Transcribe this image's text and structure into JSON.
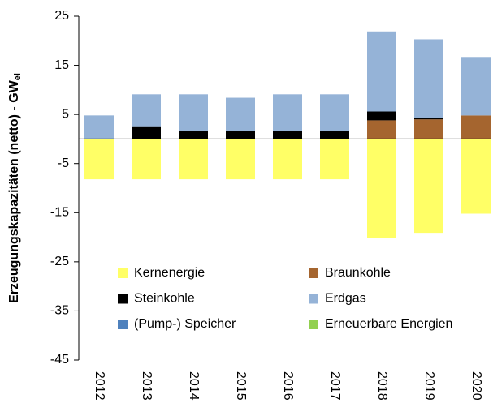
{
  "chart_data": {
    "type": "bar",
    "stacked": true,
    "ylabel": "Erzeugungskapazitäten (netto) - GW",
    "ylabel_sub": "el",
    "categories": [
      "2012",
      "2013",
      "2014",
      "2015",
      "2016",
      "2017",
      "2018",
      "2019",
      "2020"
    ],
    "series": [
      {
        "name": "Kernenergie",
        "color": "#ffff66",
        "values": [
          -8.2,
          -8.2,
          -8.2,
          -8.2,
          -8.2,
          -8.2,
          -20.1,
          -19.1,
          -15.2
        ]
      },
      {
        "name": "Braunkohle",
        "color": "#a5652f",
        "values": [
          0,
          0,
          0,
          0,
          0,
          0,
          3.8,
          4.0,
          4.8
        ]
      },
      {
        "name": "Steinkohle",
        "color": "#000000",
        "values": [
          0,
          2.6,
          1.6,
          1.6,
          1.6,
          1.6,
          1.8,
          0.2,
          0
        ]
      },
      {
        "name": "Erdgas",
        "color": "#95b3d7",
        "values": [
          4.8,
          6.5,
          7.5,
          6.8,
          7.5,
          7.5,
          16.3,
          16.1,
          11.9
        ]
      },
      {
        "name": "(Pump-) Speicher",
        "color": "#4f81bd",
        "values": [
          0,
          0,
          0,
          0,
          0,
          0,
          0,
          0,
          0
        ]
      },
      {
        "name": "Erneuerbare Energien",
        "color": "#92d050",
        "values": [
          0,
          0,
          0,
          0,
          0,
          0,
          0,
          0,
          0
        ]
      }
    ],
    "ylim": [
      -45,
      25
    ],
    "yticks": [
      -45,
      -35,
      -25,
      -15,
      -5,
      5,
      15,
      25
    ],
    "grid": false
  }
}
